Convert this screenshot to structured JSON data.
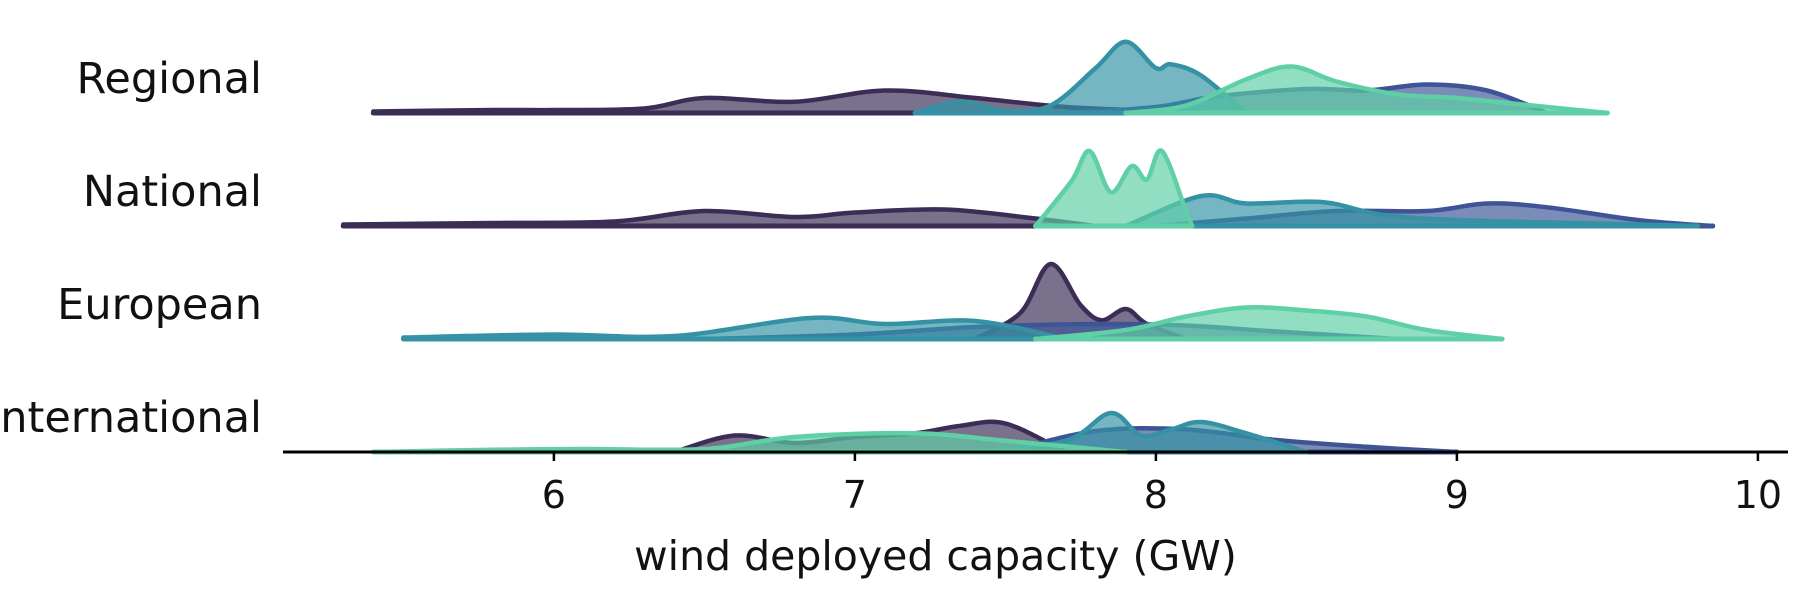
{
  "chart_data": {
    "type": "ridgeline",
    "title": "",
    "xlabel": "wind deployed capacity (GW)",
    "ylabel": "",
    "xlim": [
      5.1,
      10.1
    ],
    "x_ticks": [
      "6",
      "7",
      "8",
      "9",
      "10"
    ],
    "x_tick_values": [
      6,
      7,
      8,
      9,
      10
    ],
    "grid": false,
    "legend": "none",
    "rows": [
      "Regional",
      "National",
      "European",
      "International"
    ],
    "palette": {
      "dark_purple": "#3b2d55",
      "indigo": "#3d5596",
      "teal": "#3592a5",
      "mint": "#5fcfa6"
    },
    "ridges": [
      {
        "row": "Regional",
        "series": [
          {
            "color": "#3b2d55",
            "x": [
              5.4,
              5.8,
              6.0,
              6.3,
              6.5,
              6.8,
              7.1,
              7.4,
              7.7,
              8.0,
              8.2
            ],
            "y": [
              0.02,
              0.04,
              0.04,
              0.06,
              0.2,
              0.15,
              0.3,
              0.2,
              0.08,
              0.03,
              0.0
            ]
          },
          {
            "color": "#3d5596",
            "x": [
              7.7,
              8.0,
              8.2,
              8.5,
              8.7,
              8.9,
              9.1,
              9.3
            ],
            "y": [
              0.0,
              0.08,
              0.22,
              0.32,
              0.3,
              0.38,
              0.3,
              0.0
            ]
          },
          {
            "color": "#3592a5",
            "x": [
              7.2,
              7.35,
              7.5,
              7.65,
              7.8,
              7.9,
              8.0,
              8.05,
              8.15,
              8.3
            ],
            "y": [
              0.0,
              0.15,
              0.03,
              0.1,
              0.6,
              0.95,
              0.6,
              0.65,
              0.5,
              0.0
            ]
          },
          {
            "color": "#5fcfa6",
            "x": [
              7.9,
              8.1,
              8.3,
              8.45,
              8.6,
              8.8,
              9.0,
              9.2,
              9.5
            ],
            "y": [
              0.0,
              0.1,
              0.45,
              0.62,
              0.42,
              0.25,
              0.2,
              0.12,
              0.0
            ]
          }
        ]
      },
      {
        "row": "National",
        "series": [
          {
            "color": "#3b2d55",
            "x": [
              5.3,
              5.8,
              6.2,
              6.5,
              6.8,
              7.0,
              7.3,
              7.6,
              7.8
            ],
            "y": [
              0.02,
              0.04,
              0.06,
              0.2,
              0.12,
              0.18,
              0.22,
              0.1,
              0.0
            ]
          },
          {
            "color": "#3d5596",
            "x": [
              8.0,
              8.3,
              8.6,
              8.9,
              9.1,
              9.3,
              9.6,
              9.85
            ],
            "y": [
              0.0,
              0.1,
              0.2,
              0.2,
              0.3,
              0.25,
              0.08,
              0.0
            ]
          },
          {
            "color": "#3592a5",
            "x": [
              7.9,
              8.15,
              8.3,
              8.55,
              8.75,
              9.0,
              9.4,
              9.8
            ],
            "y": [
              0.0,
              0.4,
              0.3,
              0.32,
              0.15,
              0.08,
              0.04,
              0.0
            ]
          },
          {
            "color": "#5fcfa6",
            "x": [
              7.6,
              7.72,
              7.78,
              7.85,
              7.92,
              7.97,
              8.02,
              8.1,
              8.12
            ],
            "y": [
              0.0,
              0.6,
              1.0,
              0.45,
              0.8,
              0.62,
              1.0,
              0.2,
              0.0
            ]
          }
        ]
      },
      {
        "row": "European",
        "series": [
          {
            "color": "#3b2d55",
            "x": [
              7.4,
              7.55,
              7.65,
              7.75,
              7.82,
              7.9,
              7.97,
              8.1
            ],
            "y": [
              0.0,
              0.35,
              1.0,
              0.45,
              0.25,
              0.4,
              0.2,
              0.0
            ]
          },
          {
            "color": "#3d5596",
            "x": [
              6.5,
              7.0,
              7.4,
              7.8,
              8.1,
              8.4,
              8.8
            ],
            "y": [
              0.0,
              0.06,
              0.16,
              0.2,
              0.18,
              0.1,
              0.0
            ]
          },
          {
            "color": "#3592a5",
            "x": [
              5.5,
              6.0,
              6.4,
              6.85,
              7.1,
              7.4,
              7.7
            ],
            "y": [
              0.02,
              0.06,
              0.04,
              0.28,
              0.2,
              0.24,
              0.0
            ]
          },
          {
            "color": "#5fcfa6",
            "x": [
              7.6,
              7.9,
              8.1,
              8.3,
              8.5,
              8.7,
              8.9,
              9.15
            ],
            "y": [
              0.0,
              0.12,
              0.3,
              0.42,
              0.38,
              0.3,
              0.12,
              0.0
            ]
          }
        ]
      },
      {
        "row": "International",
        "series": [
          {
            "color": "#3b2d55",
            "x": [
              6.4,
              6.6,
              6.8,
              7.0,
              7.2,
              7.35,
              7.5,
              7.7
            ],
            "y": [
              0.0,
              0.22,
              0.12,
              0.2,
              0.25,
              0.35,
              0.38,
              0.0
            ]
          },
          {
            "color": "#3d5596",
            "x": [
              7.5,
              7.8,
              8.1,
              8.4,
              8.7,
              9.0
            ],
            "y": [
              0.0,
              0.28,
              0.3,
              0.16,
              0.07,
              0.0
            ]
          },
          {
            "color": "#3592a5",
            "x": [
              7.4,
              7.7,
              7.85,
              7.95,
              8.05,
              8.15,
              8.3,
              8.5
            ],
            "y": [
              0.0,
              0.15,
              0.52,
              0.22,
              0.3,
              0.4,
              0.25,
              0.0
            ]
          },
          {
            "color": "#5fcfa6",
            "x": [
              5.4,
              5.8,
              6.1,
              6.5,
              6.8,
              7.2,
              7.5,
              7.9
            ],
            "y": [
              0.0,
              0.03,
              0.04,
              0.04,
              0.2,
              0.25,
              0.15,
              0.0
            ]
          }
        ]
      }
    ]
  }
}
